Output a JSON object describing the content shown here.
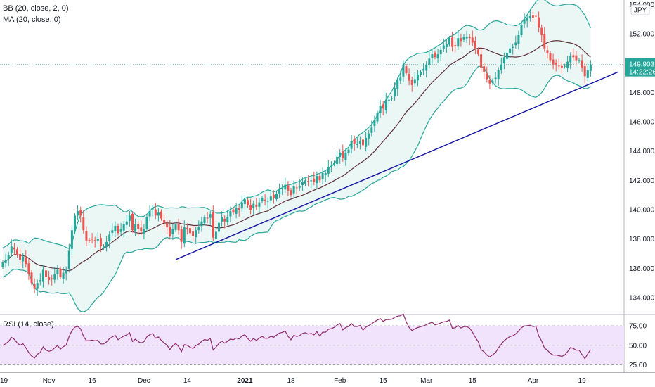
{
  "legends": {
    "bb": "BB (20, close, 2, 0)",
    "ma": "MA (20, close, 0)",
    "rsi": "RSI (14, close)"
  },
  "currency_badge": "JPY",
  "price_tag": {
    "price": "149.903",
    "countdown": "14:22:26"
  },
  "colors": {
    "up": "#26a69a",
    "down": "#ef5350",
    "band": "#26a69a",
    "band_fill": "#e6f5f3",
    "ma": "#5d2e37",
    "trendline": "#1a1aa6",
    "rsi_line": "#8e2a6c",
    "rsi_fill": "#f0e3fb"
  },
  "chart_data": [
    {
      "type": "candlestick",
      "x_tick_labels": [
        {
          "label": "19",
          "index": 0
        },
        {
          "label": "Nov",
          "index": 16
        },
        {
          "label": "16",
          "index": 31
        },
        {
          "label": "Dec",
          "index": 49
        },
        {
          "label": "14",
          "index": 64
        },
        {
          "label": "2021",
          "index": 84
        },
        {
          "label": "18",
          "index": 100
        },
        {
          "label": "Feb",
          "index": 117
        },
        {
          "label": "15",
          "index": 132
        },
        {
          "label": "Mar",
          "index": 147
        },
        {
          "label": "15",
          "index": 163
        },
        {
          "label": "Apr",
          "index": 184
        },
        {
          "label": "19",
          "index": 201
        }
      ],
      "y_ticks": [
        134.0,
        136.0,
        138.0,
        140.0,
        142.0,
        144.0,
        146.0,
        148.0,
        150.0,
        152.0,
        154.0
      ],
      "y_tick_labels": [
        "134.000",
        "136.000",
        "138.000",
        "140.000",
        "142.000",
        "144.000",
        "146.000",
        "148.000",
        "",
        "152.000",
        "154.000"
      ],
      "ylim": [
        132.9,
        154.3
      ],
      "last_price": 149.903,
      "close": [
        136.4,
        136.6,
        136.9,
        137.5,
        137.3,
        136.9,
        136.6,
        136.8,
        136.3,
        135.6,
        135.0,
        134.6,
        135.0,
        135.2,
        135.9,
        135.4,
        135.2,
        135.3,
        135.6,
        135.9,
        135.4,
        135.7,
        135.9,
        137.2,
        138.6,
        139.6,
        139.9,
        139.6,
        138.6,
        137.9,
        137.9,
        138.0,
        137.9,
        138.0,
        137.5,
        137.5,
        137.8,
        138.3,
        138.6,
        138.9,
        138.4,
        138.7,
        139.0,
        139.2,
        139.6,
        138.6,
        139.0,
        138.7,
        138.5,
        138.7,
        139.5,
        139.9,
        140.1,
        139.6,
        139.8,
        139.4,
        139.1,
        138.8,
        138.2,
        138.7,
        139.0,
        138.6,
        137.8,
        138.8,
        138.7,
        138.4,
        138.2,
        138.6,
        138.8,
        139.2,
        139.5,
        139.4,
        139.7,
        138.1,
        138.5,
        139.1,
        139.5,
        139.2,
        139.5,
        139.9,
        139.8,
        140.1,
        140.0,
        140.5,
        140.7,
        140.3,
        140.0,
        140.4,
        140.2,
        140.5,
        140.8,
        140.6,
        140.6,
        140.9,
        140.8,
        141.1,
        141.4,
        141.5,
        141.7,
        141.3,
        141.0,
        141.6,
        141.5,
        141.6,
        141.9,
        142.0,
        141.9,
        142.0,
        141.9,
        142.3,
        142.0,
        142.5,
        142.5,
        142.9,
        143.0,
        143.2,
        143.6,
        143.9,
        143.5,
        143.9,
        144.1,
        144.7,
        144.5,
        144.5,
        144.7,
        144.4,
        144.9,
        145.2,
        145.6,
        146.1,
        146.6,
        147.1,
        146.9,
        147.5,
        147.5,
        147.6,
        148.3,
        148.8,
        149.0,
        149.9,
        149.3,
        148.8,
        148.5,
        148.9,
        149.2,
        149.4,
        149.6,
        149.9,
        150.3,
        150.6,
        150.4,
        150.6,
        150.9,
        151.2,
        151.3,
        151.7,
        151.1,
        151.2,
        151.7,
        151.5,
        151.8,
        151.8,
        151.7,
        151.4,
        151.0,
        150.6,
        149.7,
        149.4,
        148.9,
        148.6,
        148.8,
        149.0,
        149.5,
        149.9,
        150.4,
        150.7,
        151.0,
        151.1,
        151.4,
        151.9,
        152.6,
        153.0,
        153.1,
        153.2,
        153.1,
        153.2,
        152.4,
        151.9,
        151.0,
        150.7,
        150.2,
        149.9,
        149.9,
        149.8,
        149.7,
        149.8,
        150.1,
        150.5,
        150.4,
        150.2,
        150.2,
        149.7,
        149.1,
        149.5,
        149.9
      ],
      "bollinger": {
        "upper": "≈+2σ band",
        "middle": "MA 20",
        "lower": "≈-2σ band"
      }
    },
    {
      "type": "line",
      "name": "RSI",
      "y_tick_labels": [
        "75.00",
        "50.00",
        "25.00"
      ],
      "ylim": [
        20,
        85
      ]
    }
  ]
}
